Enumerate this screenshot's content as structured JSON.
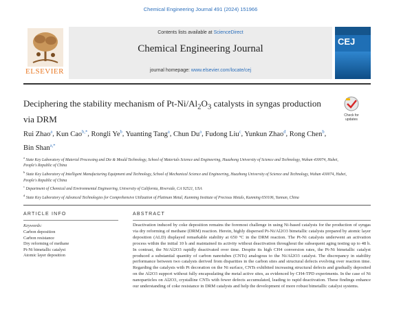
{
  "header": {
    "citation": "Chemical Engineering Journal 491 (2024) 151966",
    "contents_prefix": "Contents lists available at ",
    "contents_link": "ScienceDirect",
    "journal_title": "Chemical Engineering Journal",
    "homepage_prefix": "journal homepage: ",
    "homepage_link": "www.elsevier.com/locate/cej",
    "publisher": "ELSEVIER",
    "cover_title": "CEJ",
    "check_updates": "Check for updates"
  },
  "article": {
    "title_a": "Deciphering the stability mechanism of Pt-Ni/Al",
    "title_sub1": "2",
    "title_b": "O",
    "title_sub2": "3",
    "title_c": " catalysts in syngas production via DRM",
    "authors": [
      {
        "name": "Rui Zhao",
        "aff": "a"
      },
      {
        "name": "Kun Cao",
        "aff": "b,*"
      },
      {
        "name": "Rongli Ye",
        "aff": "b"
      },
      {
        "name": "Yuanting Tang",
        "aff": "a"
      },
      {
        "name": "Chun Du",
        "aff": "a"
      },
      {
        "name": "Fudong Liu",
        "aff": "c"
      },
      {
        "name": "Yunkun Zhao",
        "aff": "d"
      },
      {
        "name": "Rong Chen",
        "aff": "b"
      },
      {
        "name": "Bin Shan",
        "aff": "a,*"
      }
    ],
    "affiliations": [
      {
        "tag": "a",
        "text": "State Key Laboratory of Material Processing and Die & Mould Technology, School of Materials Science and Engineering, Huazhong University of Science and Technology, Wuhan 430074, Hubei, People's Republic of China"
      },
      {
        "tag": "b",
        "text": "State Key Laboratory of Intelligent Manufacturing Equipment and Technology, School of Mechanical Science and Engineering, Huazhong University of Science and Technology, Wuhan 430074, Hubei, People's Republic of China"
      },
      {
        "tag": "c",
        "text": "Department of Chemical and Environmental Engineering, University of California, Riverside, CA 92521, USA"
      },
      {
        "tag": "d",
        "text": "State Key Laboratory of Advanced Technologies for Comprehensive Utilization of Platinum Metal, Kunming Institute of Precious Metals, Kunming 650106, Yunnan, China"
      }
    ]
  },
  "article_info": {
    "heading": "ARTICLE INFO",
    "keywords_label": "Keywords:",
    "keywords": [
      "Carbon deposition",
      "Carbon resistance",
      "Dry reforming of methane",
      "Pt-Ni bimetallic catalyst",
      "Atomic layer deposition"
    ]
  },
  "abstract": {
    "heading": "ABSTRACT",
    "text": "Deactivation induced by coke deposition remains the foremost challenge in using Ni-based catalysts for the production of syngas via dry reforming of methane (DRM) reaction. Herein, highly dispersed Pt-Ni/Al2O3 bimetallic catalysts prepared by atomic layer deposition (ALD) displayed remarkable stability at 650 °C in the DRM reaction. The Pt-Ni catalysts underwent an activation process within the initial 10 h and maintained its activity without deactivation throughout the subsequent aging testing up to 48 h. In contrast, the Ni/Al2O3 rapidly deactivated over time. Despite its high CH4 conversion rates, the Pt-Ni bimetallic catalyst produced a substantial quantity of carbon nanotubes (CNTs) analogous to the Ni/Al2O3 catalyst. The discrepancy in stability performance between two catalysts derived from disparities in the carbon sites and structural defects evolving over reaction time. Regarding the catalysts with Pt decoration on the Ni surface, CNTs exhibited increasing structural defects and gradually deposited on the Al2O3 support without fully encapsulating the metal active sites, as evidenced by CH4-TPD experiments. In the case of Ni nanoparticles on Al2O3, crystalline CNTs with fewer defects accumulated, leading to rapid deactivation. These findings enhance our understanding of coke resistance in DRM catalysts and help the development of more robust bimetallic catalyst systems."
  }
}
